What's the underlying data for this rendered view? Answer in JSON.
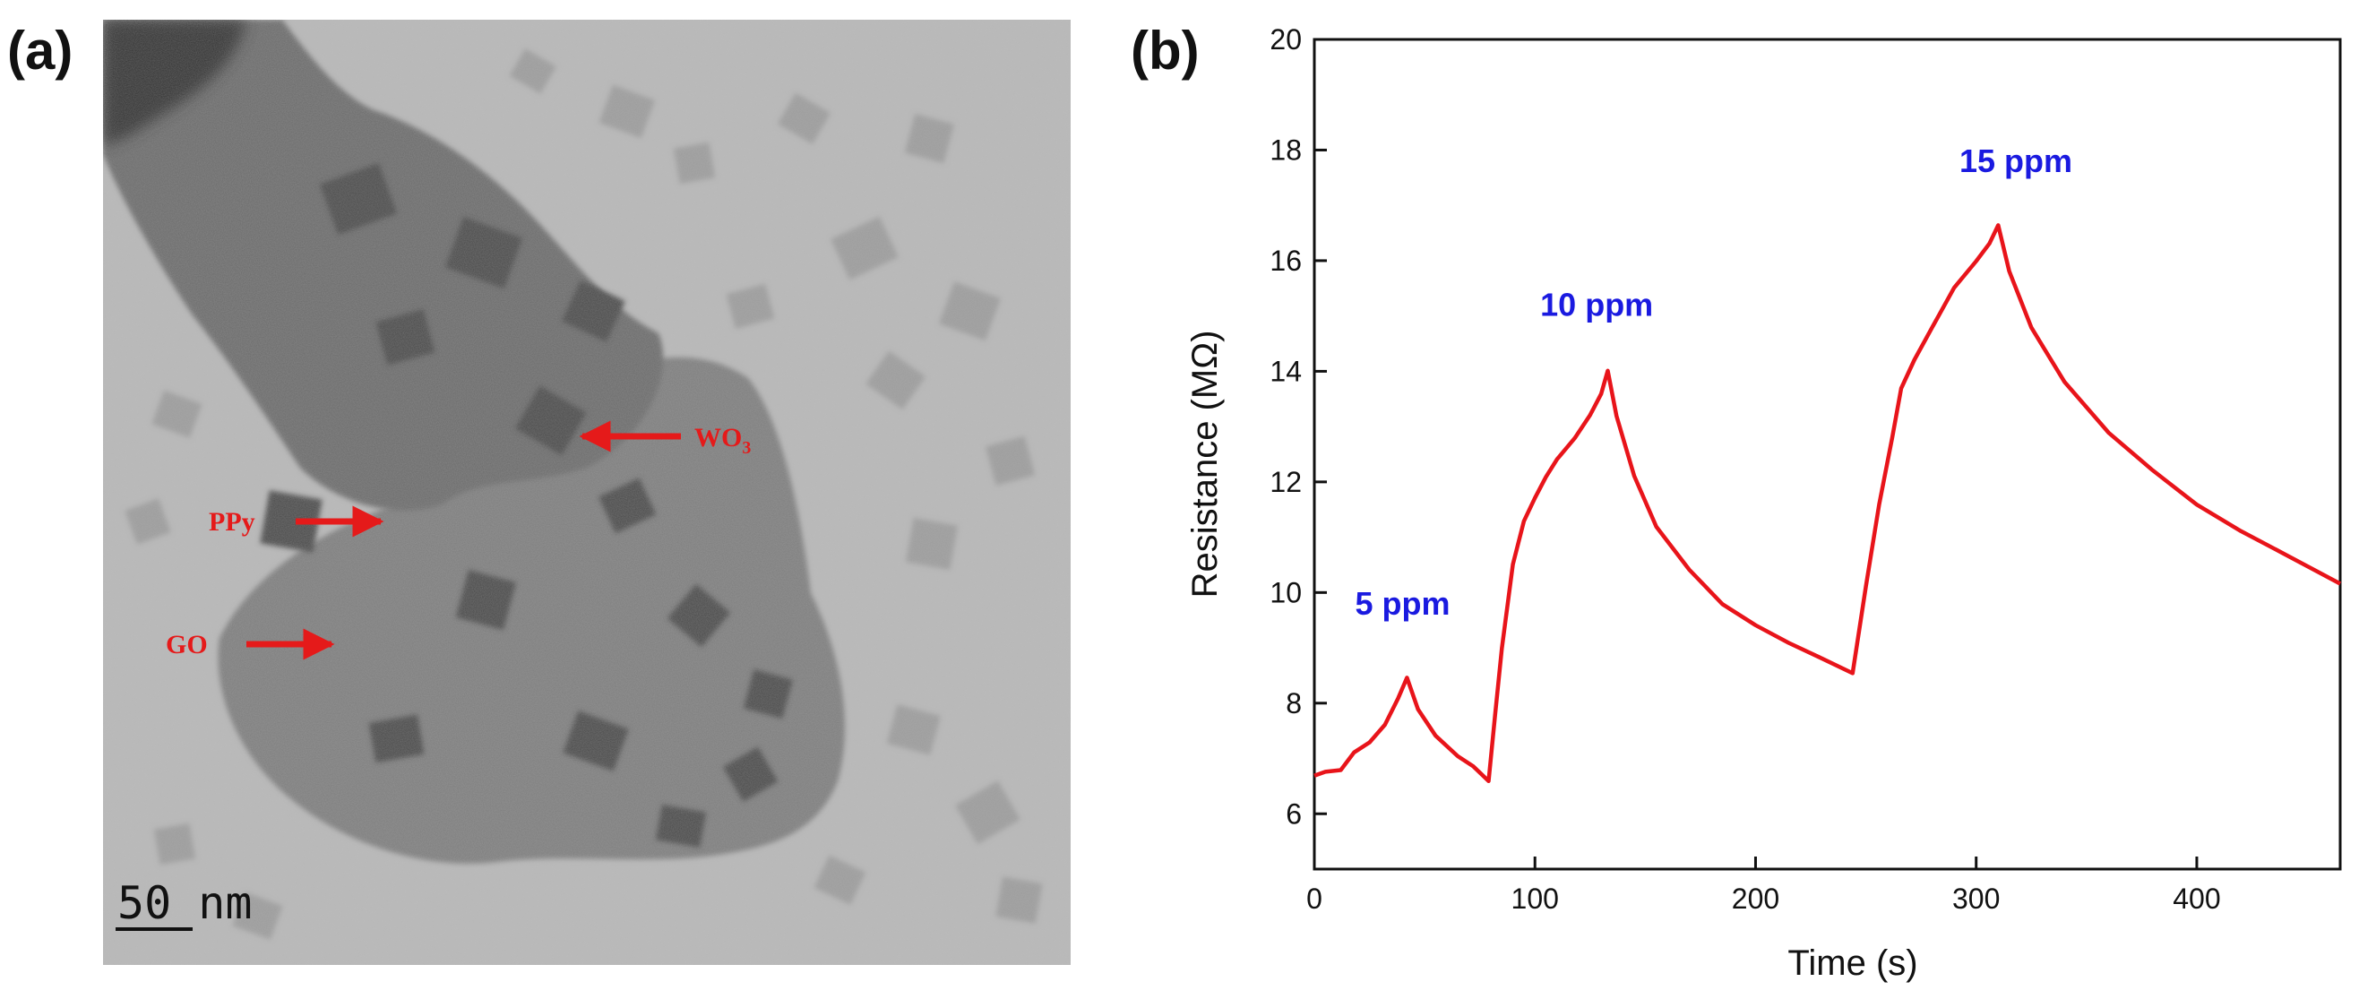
{
  "panels": {
    "a_label": "(a)",
    "b_label": "(b)"
  },
  "tem_image": {
    "annotations": [
      "WO3",
      "PPy",
      "GO"
    ],
    "scale_bar_text": "50 nm",
    "arrow_color": "#e51a1a"
  },
  "chart_data": {
    "type": "line",
    "xlabel": "Time (s)",
    "ylabel": "Resistance (MΩ)",
    "xlim": [
      0,
      465
    ],
    "ylim": [
      5,
      20
    ],
    "xticks": [
      0,
      100,
      200,
      300,
      400
    ],
    "yticks": [
      6,
      8,
      10,
      12,
      14,
      16,
      18,
      20
    ],
    "grid": false,
    "series": [
      {
        "color": "#e8141a",
        "x": [
          0,
          5,
          12,
          18,
          25,
          32,
          38,
          42,
          47,
          55,
          65,
          72,
          79,
          82,
          85,
          90,
          95,
          100,
          105,
          110,
          118,
          125,
          130,
          133,
          137,
          145,
          155,
          170,
          185,
          200,
          215,
          230,
          244,
          250,
          256,
          262,
          266,
          272,
          280,
          290,
          300,
          306,
          310,
          315,
          325,
          340,
          360,
          380,
          400,
          420,
          440,
          465
        ],
        "y": [
          6.7,
          6.75,
          6.8,
          7.1,
          7.3,
          7.6,
          8.1,
          8.45,
          7.9,
          7.4,
          7.05,
          6.85,
          6.6,
          7.8,
          9.0,
          10.5,
          11.3,
          11.7,
          12.1,
          12.4,
          12.8,
          13.2,
          13.6,
          14.0,
          13.2,
          12.1,
          11.2,
          10.4,
          9.8,
          9.4,
          9.1,
          8.8,
          8.55,
          10.1,
          11.6,
          12.8,
          13.7,
          14.2,
          14.8,
          15.5,
          16.0,
          16.3,
          16.65,
          15.8,
          14.8,
          13.8,
          12.9,
          12.2,
          11.6,
          11.1,
          10.7,
          10.15
        ]
      }
    ],
    "annotations": [
      {
        "text": "5 ppm",
        "x": 40,
        "y": 9.6
      },
      {
        "text": "10 ppm",
        "x": 128,
        "y": 15.0
      },
      {
        "text": "15 ppm",
        "x": 318,
        "y": 17.6
      }
    ],
    "annotation_color": "#1a1ae0"
  }
}
